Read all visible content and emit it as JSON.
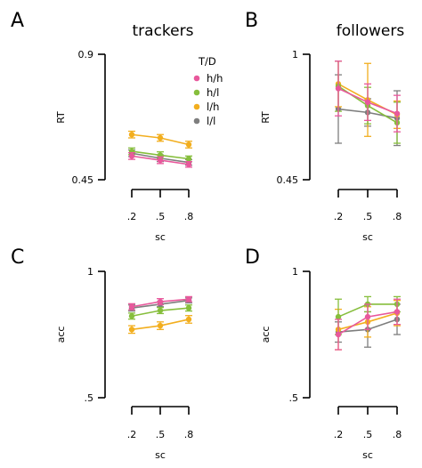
{
  "colors": {
    "h/h": "#e8589c",
    "h/l": "#86be3c",
    "l/h": "#f2ae1e",
    "l/l": "#7e7e7e"
  },
  "legend": {
    "title": "T/D",
    "items": [
      "h/h",
      "h/l",
      "l/h",
      "l/l"
    ]
  },
  "chart_data": [
    {
      "panel": "A",
      "type": "line",
      "title": "trackers",
      "xlabel": "sc",
      "ylabel": "RT",
      "x": [
        ".2",
        ".5",
        ".8"
      ],
      "ylim": [
        0.45,
        0.9
      ],
      "yticks": [
        "0.9",
        "0.45"
      ],
      "series": [
        {
          "name": "h/h",
          "values": [
            0.535,
            0.52,
            0.505
          ],
          "err": [
            0.012,
            0.012,
            0.01
          ]
        },
        {
          "name": "h/l",
          "values": [
            0.552,
            0.538,
            0.525
          ],
          "err": [
            0.012,
            0.012,
            0.01
          ]
        },
        {
          "name": "l/h",
          "values": [
            0.612,
            0.6,
            0.576
          ],
          "err": [
            0.012,
            0.012,
            0.012
          ]
        },
        {
          "name": "l/l",
          "values": [
            0.545,
            0.527,
            0.512
          ],
          "err": [
            0.012,
            0.012,
            0.01
          ]
        }
      ]
    },
    {
      "panel": "B",
      "type": "line",
      "title": "followers",
      "xlabel": "sc",
      "ylabel": "RT",
      "x": [
        ".2",
        ".5",
        ".8"
      ],
      "ylim": [
        0.45,
        1.0
      ],
      "yticks": [
        "1",
        "0.45"
      ],
      "series": [
        {
          "name": "h/h",
          "values": [
            0.85,
            0.79,
            0.74
          ],
          "err": [
            0.12,
            0.08,
            0.08
          ]
        },
        {
          "name": "h/l",
          "values": [
            0.86,
            0.775,
            0.7
          ],
          "err": [
            0.11,
            0.08,
            0.09
          ]
        },
        {
          "name": "l/h",
          "values": [
            0.87,
            0.8,
            0.735
          ],
          "err": [
            0.1,
            0.16,
            0.06
          ]
        },
        {
          "name": "l/l",
          "values": [
            0.76,
            0.745,
            0.72
          ],
          "err": [
            0.15,
            0.06,
            0.12
          ]
        }
      ]
    },
    {
      "panel": "C",
      "type": "line",
      "title": "",
      "xlabel": "sc",
      "ylabel": "acc",
      "x": [
        ".2",
        ".5",
        ".8"
      ],
      "ylim": [
        0.5,
        1.0
      ],
      "yticks": [
        "1",
        ".5"
      ],
      "series": [
        {
          "name": "h/h",
          "values": [
            0.86,
            0.88,
            0.89
          ],
          "err": [
            0.012,
            0.012,
            0.01
          ]
        },
        {
          "name": "h/l",
          "values": [
            0.823,
            0.845,
            0.855
          ],
          "err": [
            0.012,
            0.012,
            0.012
          ]
        },
        {
          "name": "l/h",
          "values": [
            0.77,
            0.785,
            0.81
          ],
          "err": [
            0.015,
            0.015,
            0.015
          ]
        },
        {
          "name": "l/l",
          "values": [
            0.855,
            0.87,
            0.885
          ],
          "err": [
            0.012,
            0.01,
            0.01
          ]
        }
      ]
    },
    {
      "panel": "D",
      "type": "line",
      "title": "",
      "xlabel": "sc",
      "ylabel": "acc",
      "x": [
        ".2",
        ".5",
        ".8"
      ],
      "ylim": [
        0.5,
        1.0
      ],
      "yticks": [
        "1",
        ".5"
      ],
      "series": [
        {
          "name": "h/h",
          "values": [
            0.75,
            0.82,
            0.84
          ],
          "err": [
            0.06,
            0.05,
            0.05
          ]
        },
        {
          "name": "h/l",
          "values": [
            0.82,
            0.87,
            0.87
          ],
          "err": [
            0.07,
            0.03,
            0.03
          ]
        },
        {
          "name": "l/h",
          "values": [
            0.77,
            0.8,
            0.835
          ],
          "err": [
            0.08,
            0.06,
            0.05
          ]
        },
        {
          "name": "l/l",
          "values": [
            0.76,
            0.77,
            0.81
          ],
          "err": [
            0.04,
            0.07,
            0.06
          ]
        }
      ]
    }
  ]
}
